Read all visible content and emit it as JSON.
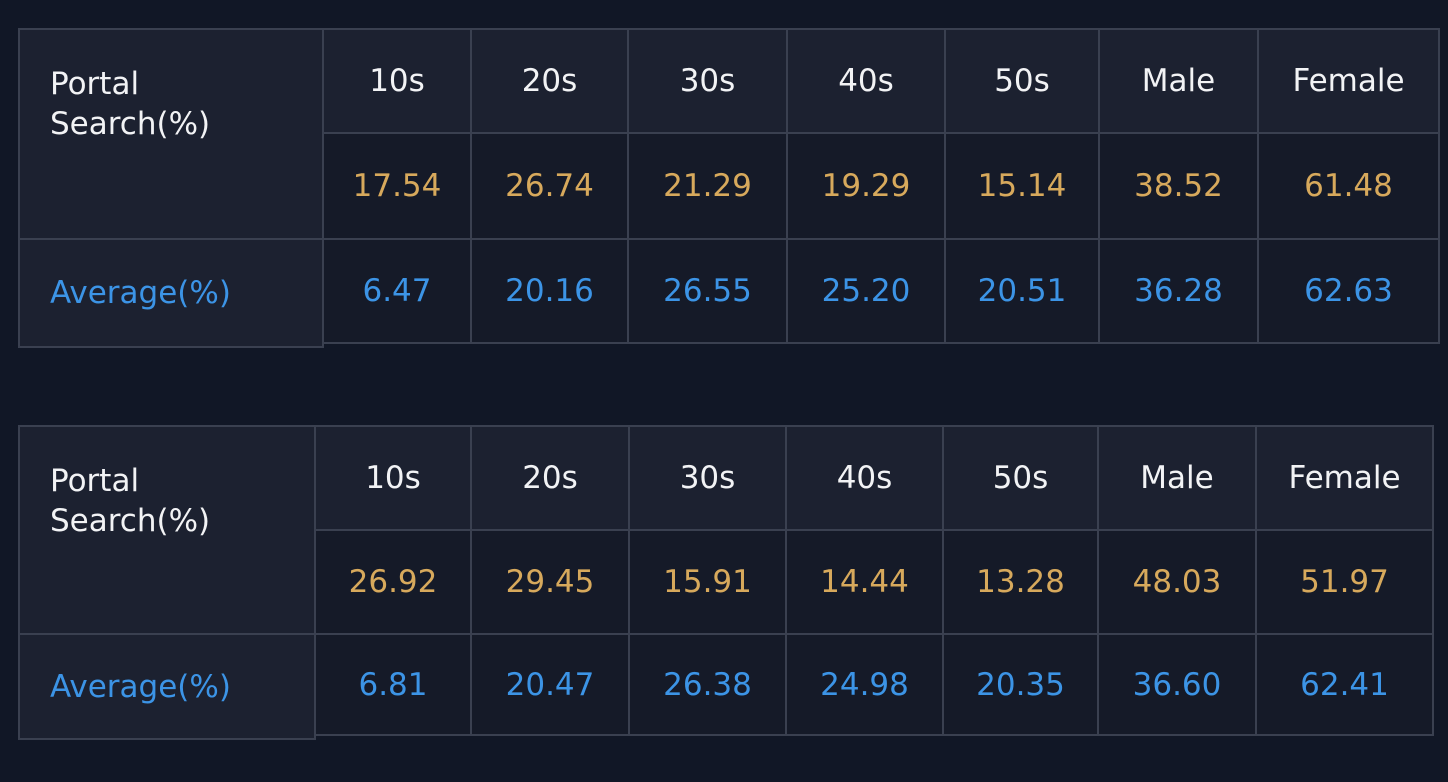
{
  "tables": [
    {
      "label": "Portal Search(%)",
      "columns": [
        "10s",
        "20s",
        "30s",
        "40s",
        "50s",
        "Male",
        "Female"
      ],
      "portal": [
        "17.54",
        "26.74",
        "21.29",
        "19.29",
        "15.14",
        "38.52",
        "61.48"
      ],
      "average_label": "Average(%)",
      "average": [
        "6.47",
        "20.16",
        "26.55",
        "25.20",
        "20.51",
        "36.28",
        "62.63"
      ]
    },
    {
      "label": "Portal Search(%)",
      "columns": [
        "10s",
        "20s",
        "30s",
        "40s",
        "50s",
        "Male",
        "Female"
      ],
      "portal": [
        "26.92",
        "29.45",
        "15.91",
        "14.44",
        "13.28",
        "48.03",
        "51.97"
      ],
      "average_label": "Average(%)",
      "average": [
        "6.81",
        "20.47",
        "26.38",
        "24.98",
        "20.35",
        "36.60",
        "62.41"
      ]
    }
  ]
}
